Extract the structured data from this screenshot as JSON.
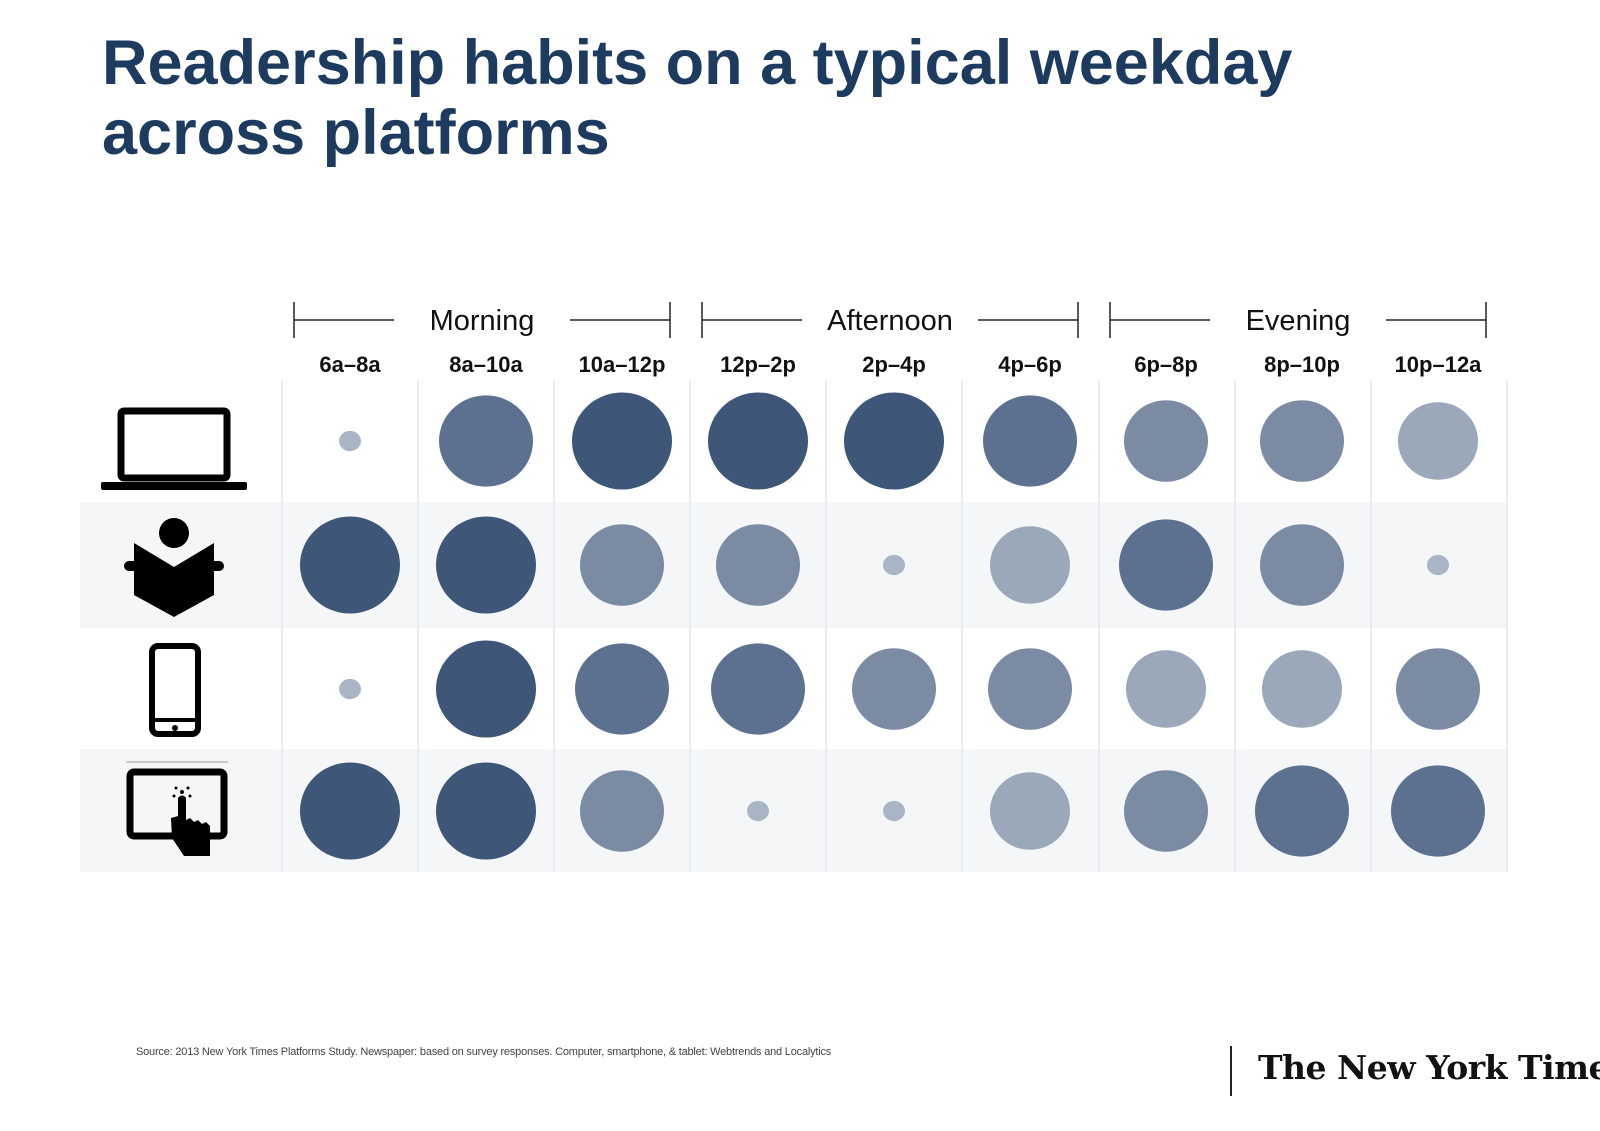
{
  "title": "Readership habits on a typical weekday across platforms",
  "source": "Source: 2013 New York Times Platforms Study. Newspaper: based on survey responses. Computer, smartphone, & tablet: Webtrends and Localytics",
  "logo": "The New York Times",
  "colors": {
    "level4": "#3e5778",
    "level3": "#5c7090",
    "level2": "#7b8ba3",
    "level1": "#9aa8ba",
    "level0": "#a9b5c4",
    "row_alt": "#f5f6f8",
    "title": "#1d3a5f"
  },
  "chart_data": {
    "type": "bubble-matrix",
    "title": "Readership habits on a typical weekday across platforms",
    "groups": [
      {
        "label": "Morning",
        "slots": [
          0,
          1,
          2
        ]
      },
      {
        "label": "Afternoon",
        "slots": [
          3,
          4,
          5
        ]
      },
      {
        "label": "Evening",
        "slots": [
          6,
          7,
          8
        ]
      }
    ],
    "time_slots": [
      "6a–8a",
      "8a–10a",
      "10a–12p",
      "12p–2p",
      "2p–4p",
      "4p–6p",
      "6p–8p",
      "8p–10p",
      "10p–12a"
    ],
    "value_scale": "relative readership, 0 (lowest) to 4 (highest)",
    "series": [
      {
        "name": "Computer",
        "icon": "laptop-icon",
        "values": [
          0,
          3,
          4,
          4,
          4,
          3,
          2,
          2,
          1
        ]
      },
      {
        "name": "Newspaper",
        "icon": "newspaper-reader-icon",
        "values": [
          4,
          4,
          2,
          2,
          0,
          1,
          3,
          2,
          0
        ]
      },
      {
        "name": "Smartphone",
        "icon": "smartphone-icon",
        "values": [
          0,
          4,
          3,
          3,
          2,
          2,
          1,
          1,
          2
        ]
      },
      {
        "name": "Tablet",
        "icon": "tablet-icon",
        "values": [
          4,
          4,
          2,
          0,
          0,
          1,
          2,
          3,
          3
        ]
      }
    ]
  }
}
